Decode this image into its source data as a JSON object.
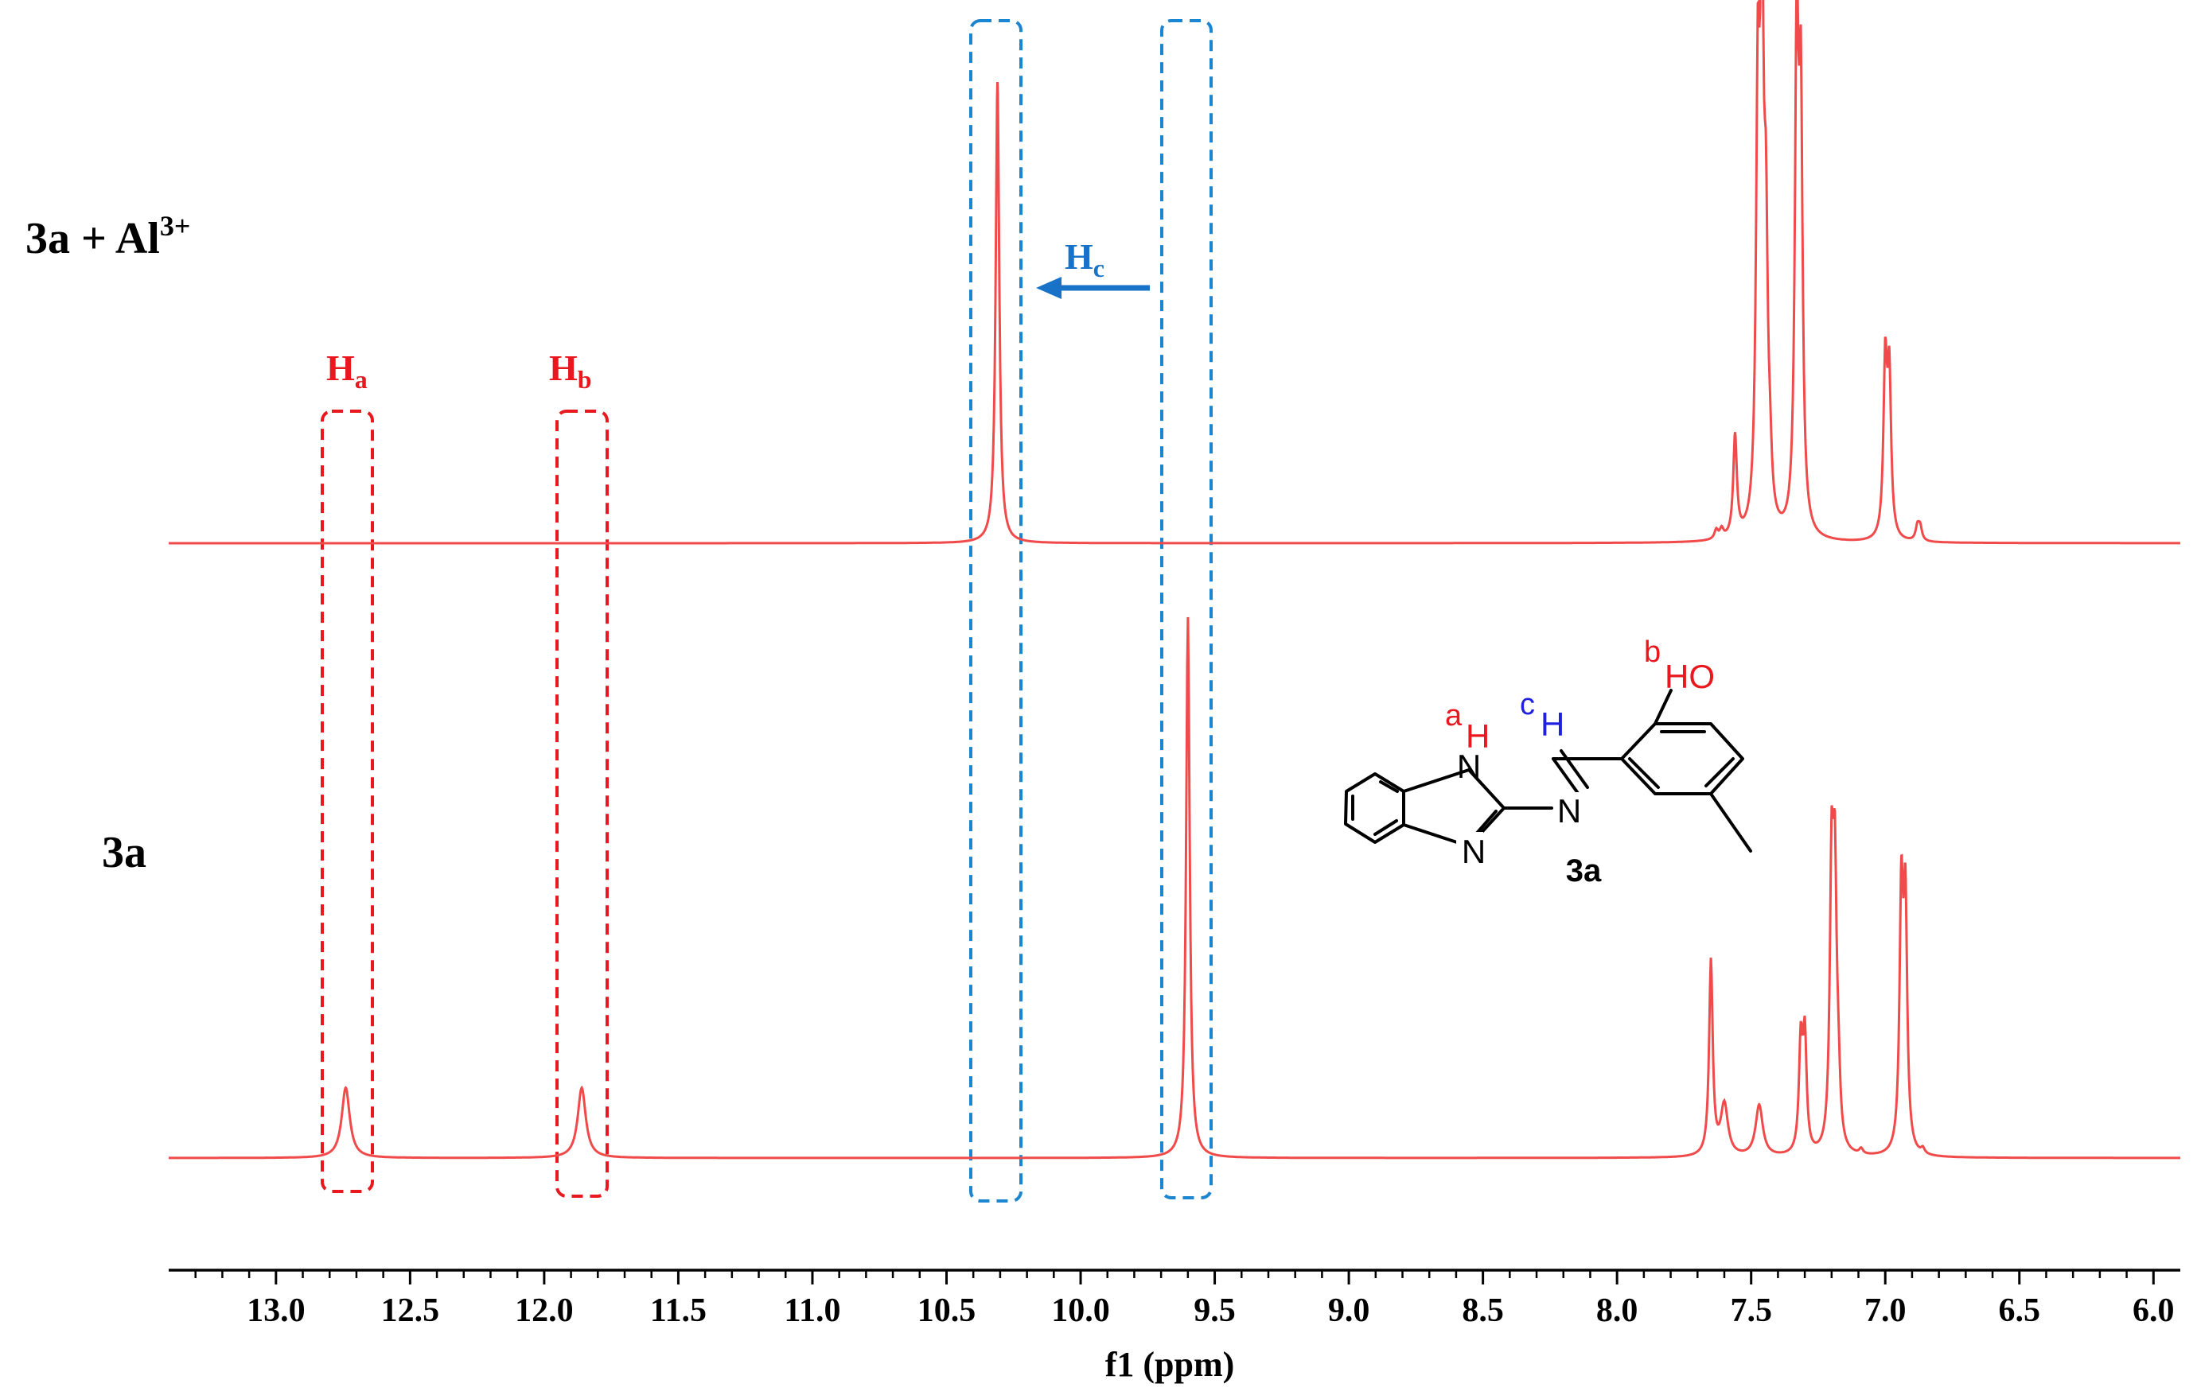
{
  "chart_data": {
    "type": "line",
    "title": "",
    "xlabel": "f1 (ppm)",
    "ylabel": "",
    "x_reversed": true,
    "xlim": [
      13.4,
      5.9
    ],
    "ticks": [
      "13.0",
      "12.5",
      "12.0",
      "11.5",
      "11.0",
      "10.5",
      "10.0",
      "9.5",
      "9.0",
      "8.5",
      "8.0",
      "7.5",
      "7.0",
      "6.5",
      "6.0"
    ],
    "grid": false,
    "line_color": "#f04a4a",
    "series": [
      {
        "label_main": "3a + Al",
        "label_sup": "3+",
        "peaks": [
          {
            "x": 10.31,
            "h": 1.0
          },
          {
            "x": 7.63,
            "h": 0.02
          },
          {
            "x": 7.61,
            "h": 0.02
          },
          {
            "x": 7.56,
            "h": 0.22
          },
          {
            "x": 7.475,
            "h": 0.88
          },
          {
            "x": 7.46,
            "h": 1.1
          },
          {
            "x": 7.445,
            "h": 0.55
          },
          {
            "x": 7.43,
            "h": 0.1
          },
          {
            "x": 7.33,
            "h": 1.05
          },
          {
            "x": 7.315,
            "h": 0.88
          },
          {
            "x": 7.0,
            "h": 0.37
          },
          {
            "x": 6.985,
            "h": 0.34
          },
          {
            "x": 6.88,
            "h": 0.03
          },
          {
            "x": 6.87,
            "h": 0.03
          }
        ]
      },
      {
        "label_main": "3a",
        "label_sup": "",
        "peaks": [
          {
            "x": 12.74,
            "h": 0.13,
            "w": 0.018
          },
          {
            "x": 11.86,
            "h": 0.13,
            "w": 0.018
          },
          {
            "x": 9.6,
            "h": 1.0
          },
          {
            "x": 7.65,
            "h": 0.36
          },
          {
            "x": 7.6,
            "h": 0.095,
            "w": 0.016
          },
          {
            "x": 7.47,
            "h": 0.095,
            "w": 0.016
          },
          {
            "x": 7.315,
            "h": 0.2
          },
          {
            "x": 7.3,
            "h": 0.21
          },
          {
            "x": 7.2,
            "h": 0.49
          },
          {
            "x": 7.188,
            "h": 0.46
          },
          {
            "x": 7.175,
            "h": 0.1
          },
          {
            "x": 6.94,
            "h": 0.46
          },
          {
            "x": 6.925,
            "h": 0.44
          },
          {
            "x": 7.09,
            "h": 0.01
          },
          {
            "x": 6.86,
            "h": 0.01
          }
        ]
      }
    ],
    "annotations": [
      {
        "main": "H",
        "sub": "a",
        "color": "#e8181e",
        "ppm": 12.74,
        "box_color": "#e8181e"
      },
      {
        "main": "H",
        "sub": "b",
        "color": "#e8181e",
        "ppm": 11.86,
        "box_color": "#e8181e"
      },
      {
        "main": "H",
        "sub": "c",
        "color": "#1873c8",
        "arrow_from_ppm": 9.6,
        "arrow_to_ppm": 10.31,
        "box_color": "#1b86cf"
      }
    ]
  },
  "structure": {
    "compound_label": "3a",
    "atom_n1": "N",
    "atom_n2": "N",
    "atom_n3": "N",
    "atom_h_a": "H",
    "atom_h_c": "H",
    "atom_ho": "HO",
    "label_a": "a",
    "label_b": "b",
    "label_c": "c",
    "color_a": "#e8181e",
    "color_b": "#e8181e",
    "color_c": "#2020e0"
  }
}
